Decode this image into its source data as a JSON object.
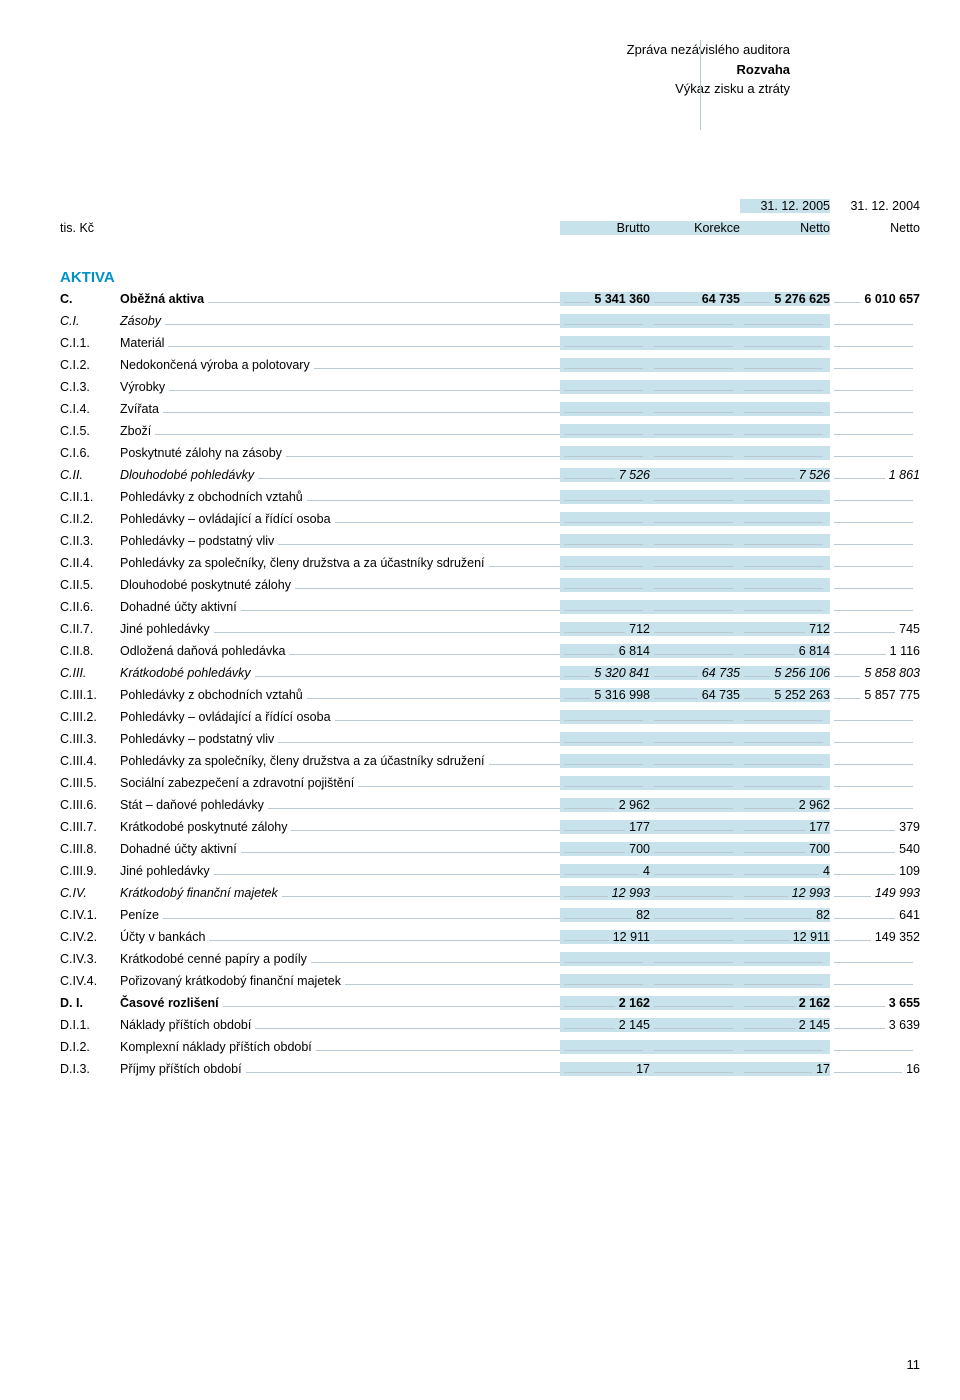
{
  "header": {
    "line1": "Zpráva nezávislého auditora",
    "line2": "Rozvaha",
    "line3": "Výkaz zisku a ztráty"
  },
  "colHeaders": {
    "unit": "tis. Kč",
    "date1": "31. 12. 2005",
    "date2": "31. 12. 2004",
    "c1": "Brutto",
    "c2": "Korekce",
    "c3": "Netto",
    "c4": "Netto"
  },
  "sectionTitle": "AKTIVA",
  "rows": [
    {
      "code": "C.",
      "label": "Oběžná aktiva",
      "b": "5 341 360",
      "k": "64 735",
      "n1": "5 276 625",
      "n2": "6 010 657",
      "style": "bold"
    },
    {
      "code": "C.I.",
      "label": "Zásoby",
      "b": "",
      "k": "",
      "n1": "",
      "n2": "",
      "style": "italic"
    },
    {
      "code": "C.I.1.",
      "label": "Materiál",
      "b": "",
      "k": "",
      "n1": "",
      "n2": ""
    },
    {
      "code": "C.I.2.",
      "label": "Nedokončená výroba a polotovary",
      "b": "",
      "k": "",
      "n1": "",
      "n2": ""
    },
    {
      "code": "C.I.3.",
      "label": "Výrobky",
      "b": "",
      "k": "",
      "n1": "",
      "n2": ""
    },
    {
      "code": "C.I.4.",
      "label": "Zvířata",
      "b": "",
      "k": "",
      "n1": "",
      "n2": ""
    },
    {
      "code": "C.I.5.",
      "label": "Zboží",
      "b": "",
      "k": "",
      "n1": "",
      "n2": ""
    },
    {
      "code": "C.I.6.",
      "label": "Poskytnuté zálohy na zásoby",
      "b": "",
      "k": "",
      "n1": "",
      "n2": ""
    },
    {
      "code": "C.II.",
      "label": "Dlouhodobé pohledávky",
      "b": "7 526",
      "k": "",
      "n1": "7 526",
      "n2": "1 861",
      "style": "italic"
    },
    {
      "code": "C.II.1.",
      "label": "Pohledávky z obchodních vztahů",
      "b": "",
      "k": "",
      "n1": "",
      "n2": ""
    },
    {
      "code": "C.II.2.",
      "label": "Pohledávky – ovládající a řídící osoba",
      "b": "",
      "k": "",
      "n1": "",
      "n2": ""
    },
    {
      "code": "C.II.3.",
      "label": "Pohledávky – podstatný vliv",
      "b": "",
      "k": "",
      "n1": "",
      "n2": ""
    },
    {
      "code": "C.II.4.",
      "label": "Pohledávky za společníky, členy družstva a za účastníky sdružení",
      "b": "",
      "k": "",
      "n1": "",
      "n2": ""
    },
    {
      "code": "C.II.5.",
      "label": "Dlouhodobé poskytnuté zálohy",
      "b": "",
      "k": "",
      "n1": "",
      "n2": ""
    },
    {
      "code": "C.II.6.",
      "label": "Dohadné účty aktivní",
      "b": "",
      "k": "",
      "n1": "",
      "n2": ""
    },
    {
      "code": "C.II.7.",
      "label": "Jiné pohledávky",
      "b": "712",
      "k": "",
      "n1": "712",
      "n2": "745"
    },
    {
      "code": "C.II.8.",
      "label": "Odložená daňová pohledávka",
      "b": "6 814",
      "k": "",
      "n1": "6 814",
      "n2": "1 116"
    },
    {
      "code": "C.III.",
      "label": "Krátkodobé pohledávky",
      "b": "5 320 841",
      "k": "64 735",
      "n1": "5 256 106",
      "n2": "5 858 803",
      "style": "italic"
    },
    {
      "code": "C.III.1.",
      "label": "Pohledávky z obchodních vztahů",
      "b": "5 316 998",
      "k": "64 735",
      "n1": "5 252 263",
      "n2": "5 857 775"
    },
    {
      "code": "C.III.2.",
      "label": "Pohledávky – ovládající a řídící osoba",
      "b": "",
      "k": "",
      "n1": "",
      "n2": ""
    },
    {
      "code": "C.III.3.",
      "label": "Pohledávky – podstatný vliv",
      "b": "",
      "k": "",
      "n1": "",
      "n2": ""
    },
    {
      "code": "C.III.4.",
      "label": "Pohledávky za společníky, členy družstva a za účastníky sdružení",
      "b": "",
      "k": "",
      "n1": "",
      "n2": ""
    },
    {
      "code": "C.III.5.",
      "label": "Sociální zabezpečení a zdravotní pojištění",
      "b": "",
      "k": "",
      "n1": "",
      "n2": ""
    },
    {
      "code": "C.III.6.",
      "label": "Stát – daňové pohledávky",
      "b": "2 962",
      "k": "",
      "n1": "2 962",
      "n2": ""
    },
    {
      "code": "C.III.7.",
      "label": "Krátkodobé poskytnuté zálohy",
      "b": "177",
      "k": "",
      "n1": "177",
      "n2": "379"
    },
    {
      "code": "C.III.8.",
      "label": "Dohadné účty aktivní",
      "b": "700",
      "k": "",
      "n1": "700",
      "n2": "540"
    },
    {
      "code": "C.III.9.",
      "label": "Jiné pohledávky",
      "b": "4",
      "k": "",
      "n1": "4",
      "n2": "109"
    },
    {
      "code": "C.IV.",
      "label": "Krátkodobý finanční majetek",
      "b": "12 993",
      "k": "",
      "n1": "12 993",
      "n2": "149 993",
      "style": "italic"
    },
    {
      "code": "C.IV.1.",
      "label": "Peníze",
      "b": "82",
      "k": "",
      "n1": "82",
      "n2": "641"
    },
    {
      "code": "C.IV.2.",
      "label": "Účty v bankách",
      "b": "12 911",
      "k": "",
      "n1": "12 911",
      "n2": "149 352"
    },
    {
      "code": "C.IV.3.",
      "label": "Krátkodobé cenné papíry a podíly",
      "b": "",
      "k": "",
      "n1": "",
      "n2": ""
    },
    {
      "code": "C.IV.4.",
      "label": "Pořizovaný krátkodobý finanční majetek",
      "b": "",
      "k": "",
      "n1": "",
      "n2": ""
    },
    {
      "code": "D. I.",
      "label": "Časové rozlišení",
      "b": "2 162",
      "k": "",
      "n1": "2 162",
      "n2": "3 655",
      "style": "bold"
    },
    {
      "code": "D.I.1.",
      "label": "Náklady příštích období",
      "b": "2 145",
      "k": "",
      "n1": "2 145",
      "n2": "3 639"
    },
    {
      "code": "D.I.2.",
      "label": "Komplexní náklady příštích období",
      "b": "",
      "k": "",
      "n1": "",
      "n2": ""
    },
    {
      "code": "D.I.3.",
      "label": "Příjmy příštích období",
      "b": "17",
      "k": "",
      "n1": "17",
      "n2": "16"
    }
  ],
  "pageNumber": "11",
  "colors": {
    "shade": "#c7e2ea",
    "rule": "#b8c9d3",
    "accent": "#0091c9"
  }
}
